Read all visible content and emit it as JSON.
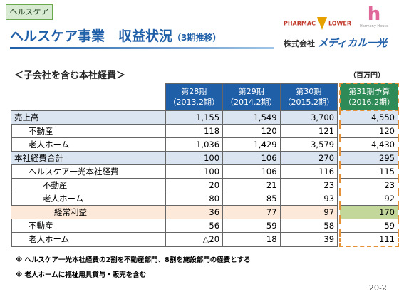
{
  "tag": "ヘルスケア",
  "header": {
    "title": "ヘルスケア事業　収益状況",
    "title_note": "（3期推移）"
  },
  "logos": {
    "pharmacy_left": "PHARMAC",
    "pharmacy_right": "LOWER",
    "harmony": "Harmony House",
    "company_prefix": "株式会社",
    "company_name": "メディカル一光"
  },
  "section": {
    "title": "＜子会社を含む本社経費＞",
    "unit": "（百万円）"
  },
  "table": {
    "columns": [
      {
        "period": "第28期",
        "fiscal": "（2013.2期）"
      },
      {
        "period": "第29期",
        "fiscal": "（2014.2期）"
      },
      {
        "period": "第30期",
        "fiscal": "（2015.2期）"
      },
      {
        "period": "第31期予算",
        "fiscal": "（2016.2期）"
      }
    ],
    "rows": [
      {
        "label": "売上高",
        "values": [
          "1,155",
          "1,549",
          "3,700",
          "4,550"
        ]
      },
      {
        "label": "不動産",
        "values": [
          "118",
          "120",
          "121",
          "120"
        ]
      },
      {
        "label": "老人ホーム",
        "values": [
          "1,036",
          "1,429",
          "3,579",
          "4,430"
        ]
      },
      {
        "label": "本社経費合計",
        "values": [
          "100",
          "106",
          "270",
          "295"
        ]
      },
      {
        "label": "ヘルスケア一光本社経費",
        "values": [
          "100",
          "106",
          "116",
          "115"
        ]
      },
      {
        "label": "不動産",
        "values": [
          "20",
          "21",
          "23",
          "23"
        ]
      },
      {
        "label": "老人ホーム",
        "values": [
          "80",
          "85",
          "93",
          "92"
        ]
      },
      {
        "label": "経常利益",
        "values": [
          "36",
          "77",
          "97",
          "170"
        ]
      },
      {
        "label": "不動産",
        "values": [
          "56",
          "59",
          "58",
          "59"
        ]
      },
      {
        "label": "老人ホーム",
        "values": [
          "△20",
          "18",
          "39",
          "111"
        ]
      }
    ]
  },
  "notes": [
    "※ ヘルスケア一光本社経費の2割を不動産部門、8割を施設部門の経費とする",
    "※ 老人ホームに福祉用具貸与・販売を含む"
  ],
  "page_number": "20-2"
}
